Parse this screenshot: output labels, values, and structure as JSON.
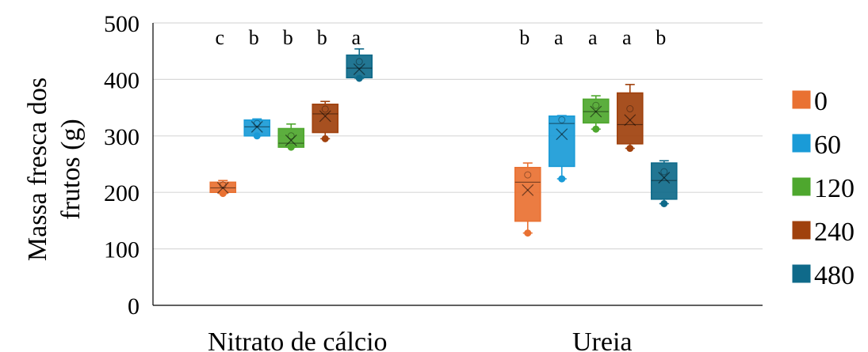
{
  "chart_data": {
    "type": "box",
    "ylabel": "Massa fresca dos frutos (g)",
    "ylabel_lines": [
      "Massa fresca dos",
      "frutos (g)"
    ],
    "ylim": [
      0,
      500
    ],
    "yticks": [
      0,
      100,
      200,
      300,
      400,
      500
    ],
    "grid": true,
    "legend_position": "right",
    "categories": [
      "Nitrato de cálcio",
      "Ureia"
    ],
    "series": [
      {
        "name": "0",
        "color": "#E97132",
        "boxes": [
          {
            "min": 198,
            "q1": 200,
            "median": 208,
            "q3": 218,
            "max": 221,
            "mean": 208,
            "outliers": [],
            "letter": "c"
          },
          {
            "min": 128,
            "q1": 149,
            "median": 218,
            "q3": 244,
            "max": 252,
            "mean": 204,
            "outliers": [],
            "letter": "b"
          }
        ]
      },
      {
        "name": "60",
        "color": "#1A9BD7",
        "boxes": [
          {
            "min": 300,
            "q1": 300,
            "median": 316,
            "q3": 328,
            "max": 330,
            "mean": 316,
            "outliers": [],
            "letter": "b"
          },
          {
            "min": 224,
            "q1": 246,
            "median": 322,
            "q3": 335,
            "max": 336,
            "mean": 303,
            "outliers": [],
            "letter": "a"
          }
        ]
      },
      {
        "name": "120",
        "color": "#4EA72E",
        "boxes": [
          {
            "min": 280,
            "q1": 280,
            "median": 287,
            "q3": 313,
            "max": 321,
            "mean": 292,
            "outliers": [],
            "letter": "b"
          },
          {
            "min": 312,
            "q1": 323,
            "median": 343,
            "q3": 365,
            "max": 371,
            "mean": 343,
            "outliers": [],
            "letter": "a"
          }
        ]
      },
      {
        "name": "240",
        "color": "#A0410D",
        "boxes": [
          {
            "min": 295,
            "q1": 306,
            "median": 339,
            "q3": 356,
            "max": 361,
            "mean": 335,
            "outliers": [],
            "letter": "b"
          },
          {
            "min": 278,
            "q1": 286,
            "median": 320,
            "q3": 376,
            "max": 391,
            "mean": 328,
            "outliers": [],
            "letter": "a"
          }
        ]
      },
      {
        "name": "480",
        "color": "#0F6A8A",
        "boxes": [
          {
            "min": 402,
            "q1": 403,
            "median": 420,
            "q3": 443,
            "max": 454,
            "mean": 418,
            "outliers": [],
            "letter": "a"
          },
          {
            "min": 180,
            "q1": 188,
            "median": 221,
            "q3": 252,
            "max": 256,
            "mean": 226,
            "outliers": [],
            "letter": "b"
          }
        ]
      }
    ]
  }
}
